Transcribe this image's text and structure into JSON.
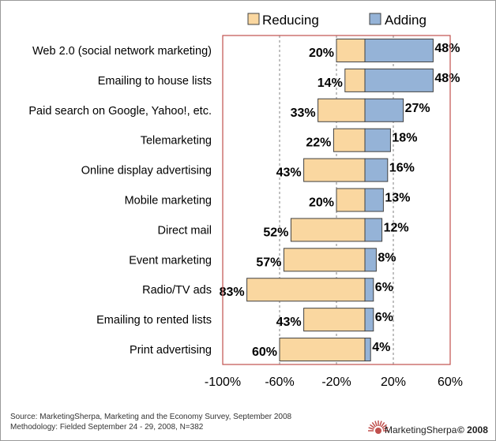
{
  "chart_data": {
    "type": "bar",
    "orientation": "horizontal-diverging",
    "categories": [
      "Web 2.0 (social network marketing)",
      "Emailing to house lists",
      "Paid search on Google, Yahoo!, etc.",
      "Telemarketing",
      "Online display advertising",
      "Mobile marketing",
      "Direct mail",
      "Event marketing",
      "Radio/TV ads",
      "Emailing to rented lists",
      "Print advertising"
    ],
    "series": [
      {
        "name": "Reducing",
        "values": [
          20,
          14,
          33,
          22,
          43,
          20,
          52,
          57,
          83,
          43,
          60
        ],
        "color": "#FAD7A0"
      },
      {
        "name": "Adding",
        "values": [
          48,
          48,
          27,
          18,
          16,
          13,
          12,
          8,
          6,
          6,
          4
        ],
        "color": "#95B3D7"
      }
    ],
    "value_labels": {
      "Reducing": [
        "20%",
        "14%",
        "33%",
        "22%",
        "43%",
        "20%",
        "52%",
        "57%",
        "83%",
        "43%",
        "60%"
      ],
      "Adding": [
        "48%",
        "48%",
        "27%",
        "18%",
        "16%",
        "13%",
        "12%",
        "8%",
        "6%",
        "6%",
        "4%"
      ]
    },
    "xlim": [
      -100,
      60
    ],
    "xticks": [
      -100,
      -60,
      -20,
      20,
      60
    ],
    "xtick_labels": [
      "-100%",
      "-60%",
      "-20%",
      "20%",
      "60%"
    ],
    "grid": "vertical-dashed",
    "legend_position": "top",
    "title": "",
    "xlabel": "",
    "ylabel": ""
  },
  "footer": {
    "source": "Source: MarketingSherpa, Marketing and the Economy Survey, September 2008",
    "methodology": "Methodology: Fielded September 24 - 29, 2008, N=382",
    "brand": "MarketingSherpa",
    "copyright": "© 2008"
  },
  "colors": {
    "plot_border": "#C0504D",
    "bar_outline": "#404040",
    "grid": "#808080",
    "brand_accent": "#C0504D"
  },
  "logo_icon": "sunburst-logo-icon"
}
